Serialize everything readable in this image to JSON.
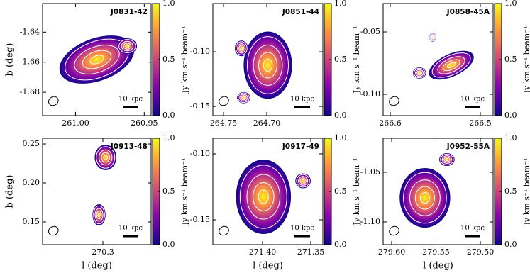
{
  "chart_data": [
    {
      "type": "image",
      "title": "J0831-42",
      "colormap": "plasma",
      "xlim": [
        261.024,
        260.945
      ],
      "xticks": [
        {
          "value": 261,
          "label": "261.00"
        },
        260.95
      ],
      "ylim": [
        -1.6955,
        -1.621
      ],
      "yticks": [
        -1.64,
        -1.66,
        -1.68
      ],
      "ylabel": "b (deg)",
      "colorbar": {
        "label": "Jy km s⁻¹ beam⁻¹",
        "lim": [
          0,
          1
        ],
        "ticks": [
          {
            "value": 0,
            "label": "0.0"
          },
          0.5,
          {
            "value": 1,
            "label": "1.0"
          }
        ]
      },
      "annotation": "10 kpc"
    },
    {
      "type": "image",
      "title": "J0851-44",
      "colormap": "plasma",
      "xlim": [
        264.7623,
        264.6352
      ],
      "xticks": [
        264.75,
        {
          "value": 264.7,
          "label": "264.70"
        }
      ],
      "ylim": [
        -0.1584,
        -0.0558
      ],
      "yticks": [
        {
          "value": -0.1,
          "label": "-0.10"
        },
        -0.15
      ],
      "colorbar": {
        "label": "Jy km s⁻¹ beam⁻¹",
        "lim": [
          0,
          1
        ],
        "ticks": [
          {
            "value": 0,
            "label": "0.0"
          },
          0.5,
          {
            "value": 1,
            "label": "1.0"
          }
        ]
      },
      "annotation": "10 kpc"
    },
    {
      "type": "image",
      "title": "J0858-45A",
      "colormap": "plasma",
      "xlim": [
        266.6079,
        266.4858
      ],
      "xticks": [
        266.6,
        266.5
      ],
      "ylim": [
        -0.117,
        -0.0273
      ],
      "yticks": [
        -0.05,
        {
          "value": -0.1,
          "label": "-0.10"
        }
      ],
      "colorbar": {
        "label": "Jy km s⁻¹ beam⁻¹",
        "lim": [
          0,
          1
        ],
        "ticks": [
          {
            "value": 0,
            "label": "0.0"
          },
          0.5,
          {
            "value": 1,
            "label": "1.0"
          }
        ]
      },
      "annotation": "10 kpc"
    },
    {
      "type": "image",
      "title": "J0913-48",
      "colormap": "plasma",
      "xlim": [
        270.368,
        270.2456
      ],
      "xticks": [
        270.3
      ],
      "ylim": [
        0.1209,
        0.2573
      ],
      "yticks": [
        0.25,
        {
          "value": 0.2,
          "label": "0.20"
        },
        0.15
      ],
      "xlabel": "l (deg)",
      "ylabel": "b (deg)",
      "colorbar": {
        "label": "Jy km s⁻¹ beam⁻¹",
        "lim": [
          0,
          1
        ],
        "ticks": [
          {
            "value": 0,
            "label": "0.0"
          },
          0.5,
          {
            "value": 1,
            "label": "1.0"
          }
        ]
      },
      "annotation": "10 kpc"
    },
    {
      "type": "image",
      "title": "J0917-49",
      "colormap": "plasma",
      "xlim": [
        271.4515,
        271.3375
      ],
      "xticks": [
        {
          "value": 271.4,
          "label": "271.40"
        },
        271.35
      ],
      "ylim": [
        -0.1688,
        -0.0882
      ],
      "yticks": [
        {
          "value": -0.1,
          "label": "-0.10"
        },
        -0.15
      ],
      "xlabel": "l (deg)",
      "colorbar": {
        "label": "Jy km s⁻¹ beam⁻¹",
        "lim": [
          0,
          1
        ],
        "ticks": [
          {
            "value": 0,
            "label": "0.0"
          },
          0.5,
          {
            "value": 1,
            "label": "1.0"
          }
        ]
      },
      "annotation": "10 kpc"
    },
    {
      "type": "image",
      "title": "J0952-55A",
      "colormap": "plasma",
      "xlim": [
        279.6096,
        279.4856
      ],
      "xticks": [
        {
          "value": 279.6,
          "label": "279.60"
        },
        279.55,
        {
          "value": 279.5,
          "label": "279.50"
        }
      ],
      "ylim": [
        -1.1229,
        -1.0157
      ],
      "yticks": [
        -1.05,
        {
          "value": -1.1,
          "label": "-1.10"
        }
      ],
      "xlabel": "l (deg)",
      "colorbar": {
        "label": "Jy km s⁻¹ beam⁻¹",
        "lim": [
          0,
          1
        ],
        "ticks": [
          {
            "value": 0,
            "label": "0.0"
          },
          0.5,
          {
            "value": 1,
            "label": "1.0"
          }
        ]
      },
      "annotation": "10 kpc"
    }
  ]
}
